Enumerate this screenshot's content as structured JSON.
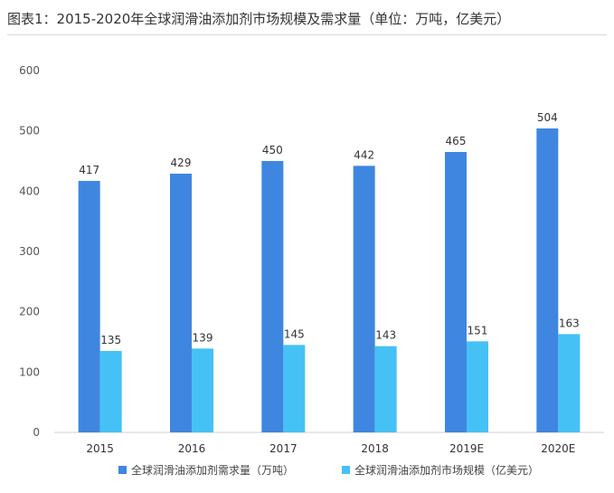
{
  "title": "图表1：2015-2020年全球润滑油添加剂市场规模及需求量（单位：万吨，亿美元）",
  "colors": {
    "series1": "#3f86e0",
    "series2": "#45c1f5",
    "axis": "#d0d0d0",
    "text": "#333333"
  },
  "chart_data": {
    "type": "bar",
    "categories": [
      "2015",
      "2016",
      "2017",
      "2018",
      "2019E",
      "2020E"
    ],
    "series": [
      {
        "name": "全球润滑油添加剂需求量（万吨）",
        "values": [
          417,
          429,
          450,
          442,
          465,
          504
        ]
      },
      {
        "name": "全球润滑油添加剂市场规模（亿美元）",
        "values": [
          135,
          139,
          145,
          143,
          151,
          163
        ]
      }
    ],
    "ylim": [
      0,
      600
    ],
    "yticks": [
      "0",
      "100",
      "200",
      "300",
      "400",
      "500",
      "600"
    ],
    "grid": false,
    "legend": "bottom",
    "data_labels": true
  }
}
